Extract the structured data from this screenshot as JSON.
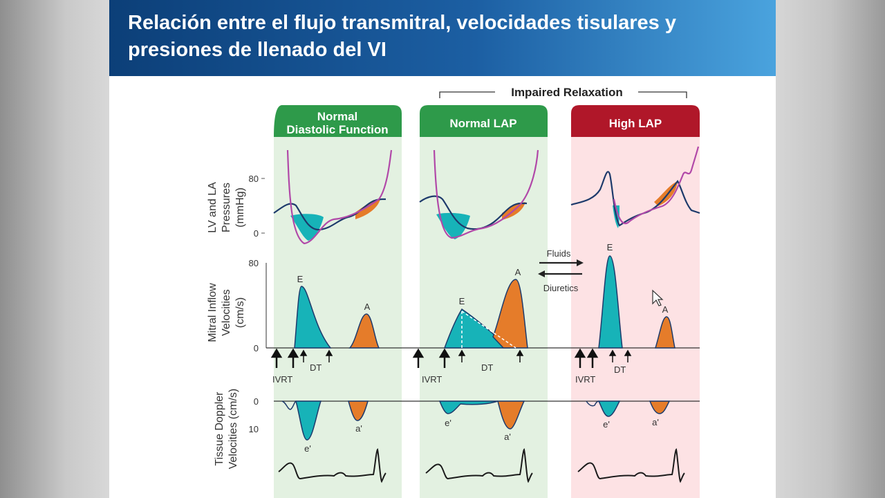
{
  "slide": {
    "title": "Relación entre el flujo transmitral, velocidades tisulares  y presiones de llenado del VI"
  },
  "figure": {
    "bracket_label": "Impaired Relaxation",
    "panels": [
      {
        "name": "normal",
        "header_line1": "Normal",
        "header_line2": "Diastolic Function",
        "header_color": "#2e9a4a",
        "bg_color": "#e3f1e1"
      },
      {
        "name": "normal-lap",
        "header": "Normal LAP",
        "header_color": "#2e9a4a",
        "bg_color": "#e3f1e1"
      },
      {
        "name": "high-lap",
        "header": "High LAP",
        "header_color": "#b01729",
        "bg_color": "#fde2e4"
      }
    ],
    "y_labels": {
      "pressures_line1": "LV and LA",
      "pressures_line2": "Pressures",
      "pressures_line3": "(mmHg)",
      "mitral_line1": "Mitral Inflow",
      "mitral_line2": "Velocities",
      "mitral_line3": "(cm/s)",
      "tissue_line1": "Tissue Doppler",
      "tissue_line2": "Velocities (cm/s)"
    },
    "ticks": {
      "pressure_top": "80",
      "pressure_bottom": "0",
      "mitral_top": "80",
      "mitral_bottom": "0",
      "tissue_top": "0",
      "tissue_bottom": "10"
    },
    "labels": {
      "e": "E",
      "a": "A",
      "e_prime": "e'",
      "a_prime": "a'",
      "ivrt": "IVRT",
      "dt": "DT",
      "fluids": "Fluids",
      "diuretics": "Diuretics"
    },
    "colors": {
      "teal": "#17b3b8",
      "orange": "#e57c2a",
      "lv_line": "#1d3a6b",
      "la_line": "#b148a8"
    }
  }
}
